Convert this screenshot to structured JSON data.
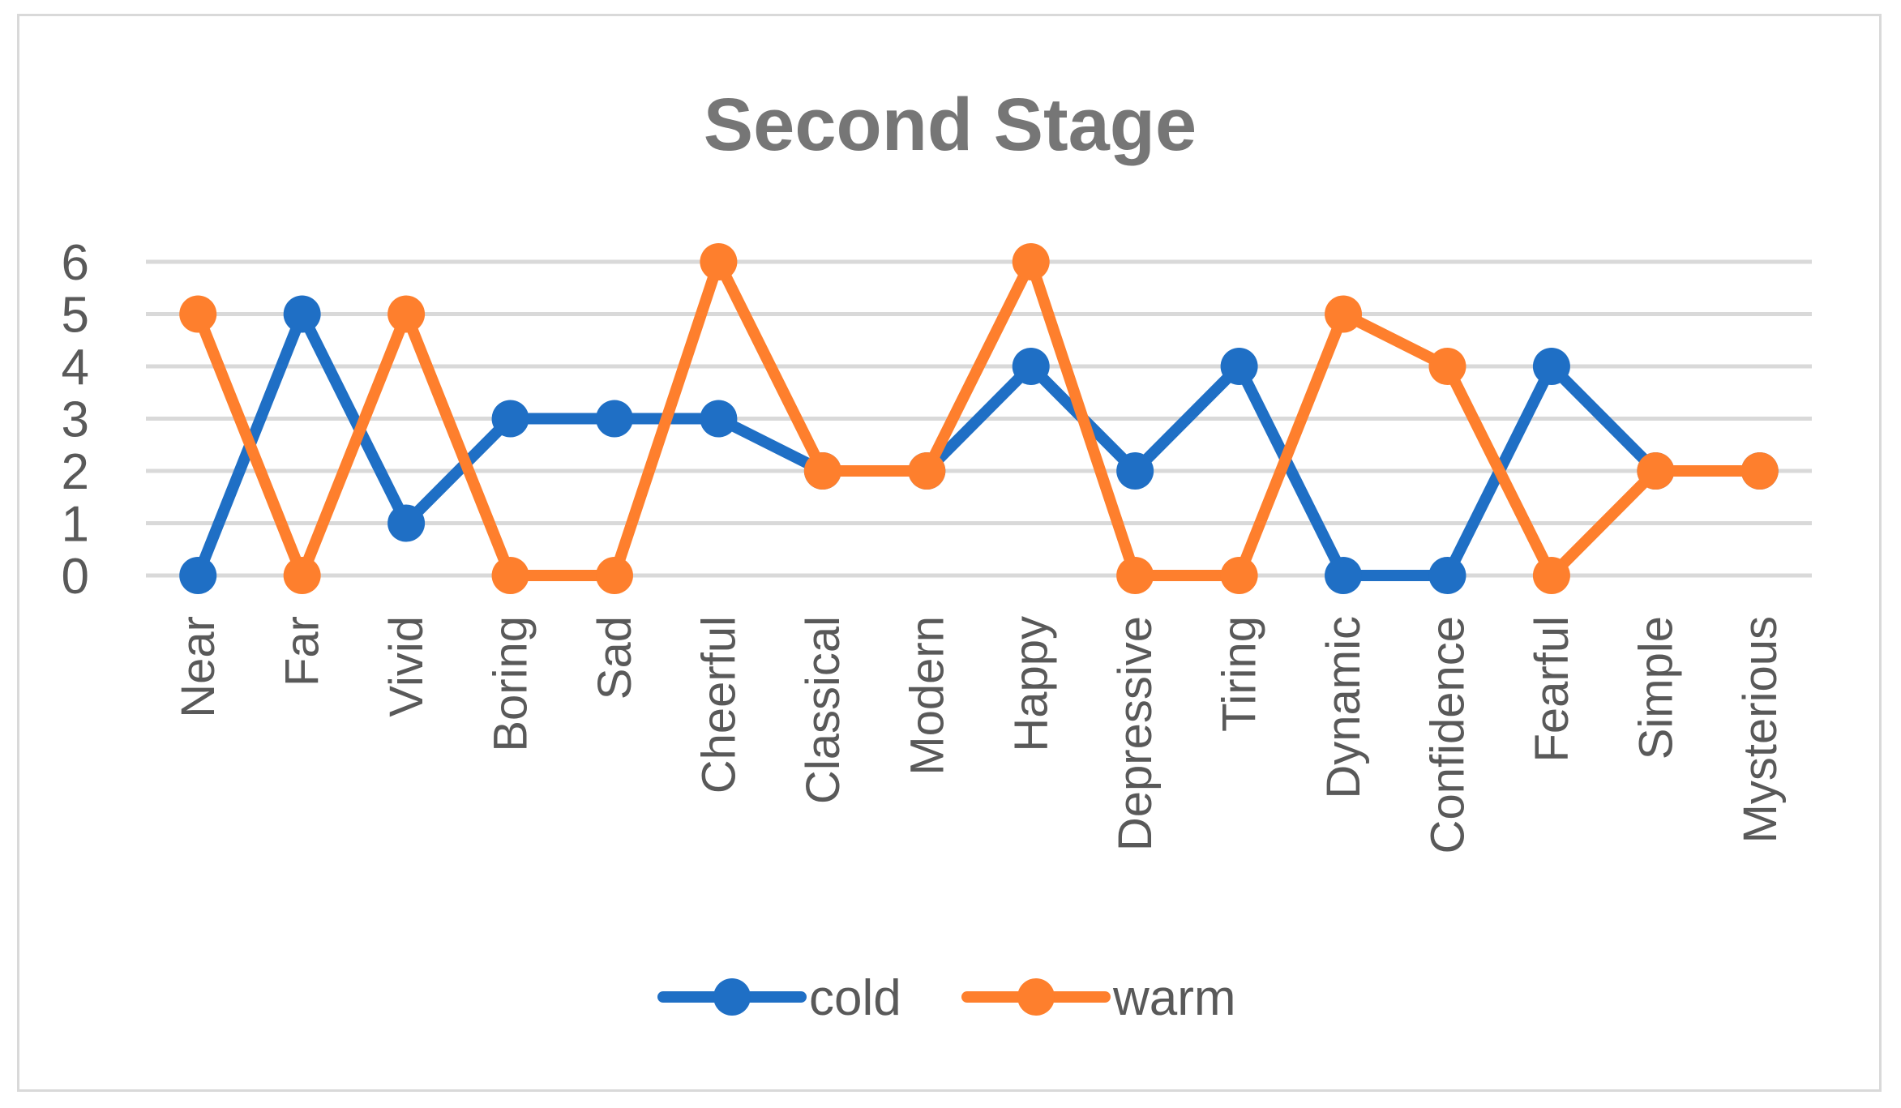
{
  "chart_data": {
    "type": "line",
    "title": "Second Stage",
    "xlabel": "",
    "ylabel": "",
    "ylim": [
      0,
      6
    ],
    "yticks": [
      "0",
      "1",
      "2",
      "3",
      "4",
      "5",
      "6"
    ],
    "grid": true,
    "legend_position": "bottom",
    "categories": [
      "Near",
      "Far",
      "Vivid",
      "Boring",
      "Sad",
      "Cheerful",
      "Classical",
      "Modern",
      "Happy",
      "Depressive",
      "Tiring",
      "Dynamic",
      "Confidence",
      "Fearful",
      "Simple",
      "Mysterious"
    ],
    "series": [
      {
        "name": "cold",
        "color": "#1f6fc5",
        "values": [
          0,
          5,
          1,
          3,
          3,
          3,
          2,
          2,
          4,
          2,
          4,
          0,
          0,
          4,
          2,
          2
        ]
      },
      {
        "name": "warm",
        "color": "#fe7f2d",
        "values": [
          5,
          0,
          5,
          0,
          0,
          6,
          2,
          2,
          6,
          0,
          0,
          5,
          4,
          0,
          2,
          2
        ]
      }
    ]
  }
}
